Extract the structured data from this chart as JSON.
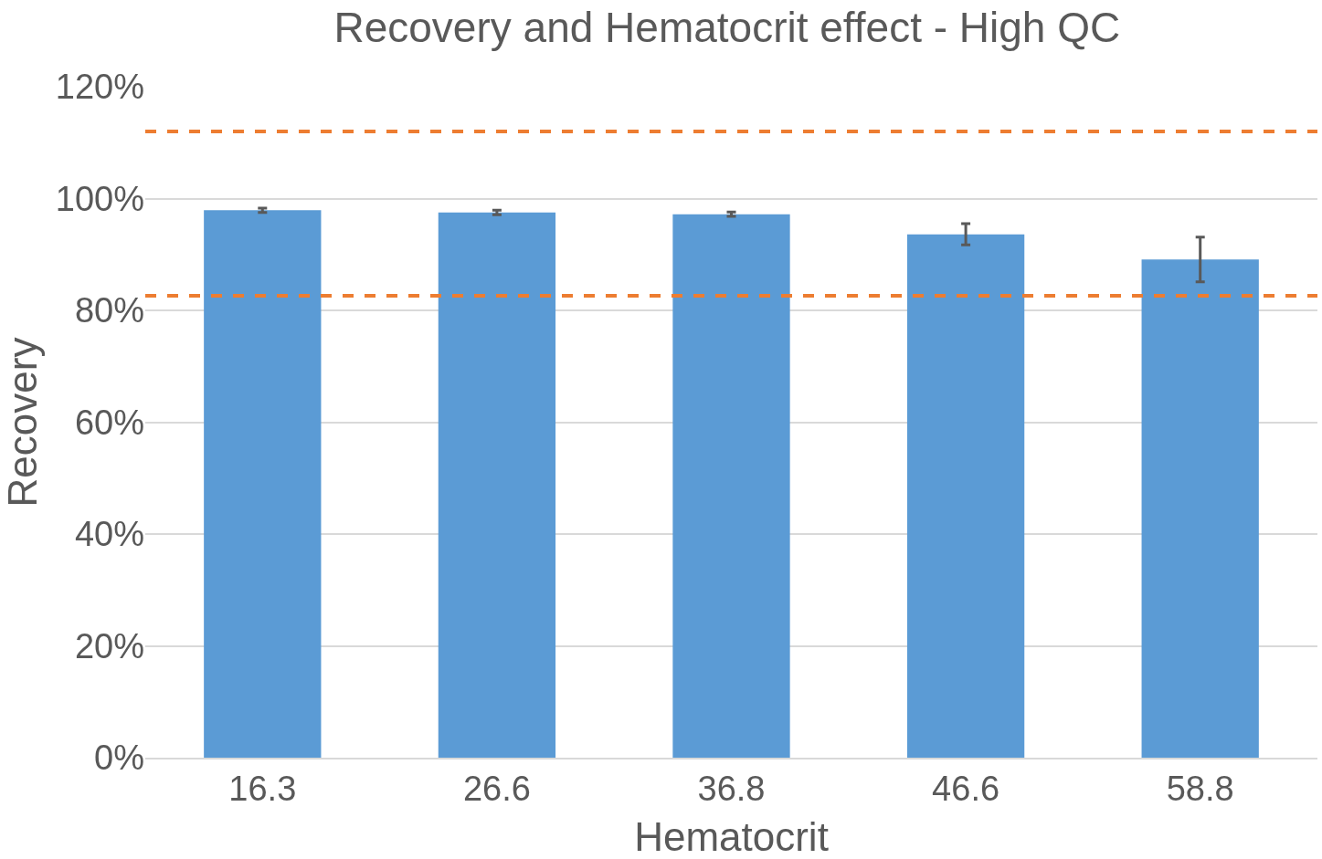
{
  "chart_data": {
    "type": "bar",
    "title": "Recovery and Hematocrit effect - High QC",
    "xlabel": "Hematocrit",
    "ylabel": "Recovery",
    "categories": [
      "16.3",
      "26.6",
      "36.8",
      "46.6",
      "58.8"
    ],
    "values": [
      97.9,
      97.5,
      97.2,
      93.6,
      89.1
    ],
    "errors": [
      0.4,
      0.4,
      0.4,
      1.9,
      4.0
    ],
    "color": "#5b9bd5",
    "ylim": [
      0,
      120
    ],
    "yticks": [
      {
        "value": 0,
        "label": "0%"
      },
      {
        "value": 20,
        "label": "20%"
      },
      {
        "value": 40,
        "label": "40%"
      },
      {
        "value": 60,
        "label": "60%"
      },
      {
        "value": 80,
        "label": "80%"
      },
      {
        "value": 100,
        "label": "100%"
      },
      {
        "value": 120,
        "label": "120%"
      }
    ],
    "grid": "y",
    "ref_lines": [
      {
        "axis": "y",
        "value": 112,
        "color": "#ed7d31",
        "line_style": "dashed"
      },
      {
        "axis": "y",
        "value": 82.6,
        "color": "#ed7d31",
        "line_style": "dashed"
      }
    ]
  }
}
